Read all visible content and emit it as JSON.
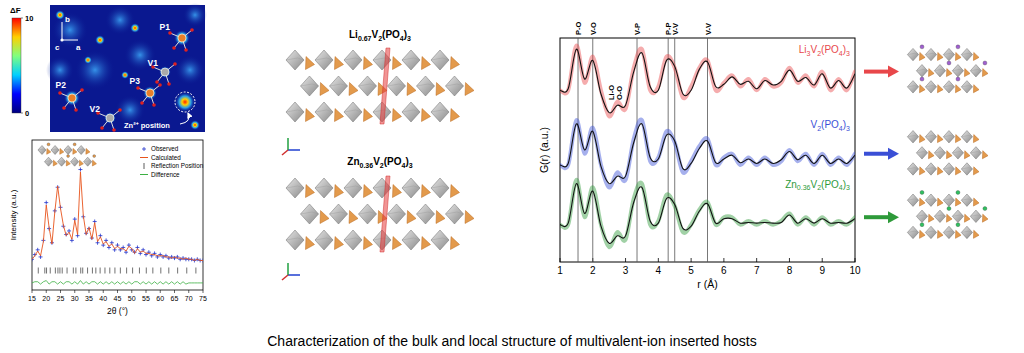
{
  "caption": "Characterization of the bulk and local structure of multivalent-ion inserted hosts",
  "density_map": {
    "colorbar": {
      "label": "ΔF",
      "range": [
        0,
        10
      ],
      "ticks": [
        0,
        10
      ]
    },
    "labels": [
      "P1",
      "P2",
      "P3",
      "V1",
      "V2"
    ],
    "annotation": "Zn²⁺ position",
    "axes": [
      "b",
      "c",
      "a"
    ]
  },
  "structures": {
    "titles": [
      "Li0.67V2(PO4)3",
      "Zn0.36V2(PO4)3"
    ]
  },
  "chart_data": [
    {
      "type": "line",
      "x_label": "2θ (°)",
      "y_label": "Intensity (a.u.)",
      "x": [
        15,
        16,
        17,
        18,
        19,
        20,
        21,
        22,
        23,
        24,
        25,
        26,
        27,
        28,
        29,
        30,
        31,
        32,
        33,
        34,
        35,
        36,
        37,
        38,
        39,
        40,
        41,
        42,
        43,
        44,
        45,
        46,
        47,
        48,
        49,
        50,
        51,
        52,
        53,
        54,
        55,
        56,
        57,
        58,
        59,
        60,
        61,
        62,
        63,
        64,
        65,
        66,
        67,
        68,
        69,
        70,
        71,
        72,
        73,
        74,
        75
      ],
      "series": [
        {
          "name": "Observed",
          "color": "#2233cc",
          "marker": "plus",
          "values": [
            14,
            18,
            22,
            16,
            30,
            62,
            40,
            28,
            55,
            75,
            58,
            42,
            35,
            38,
            30,
            48,
            34,
            90,
            50,
            36,
            40,
            32,
            46,
            28,
            34,
            26,
            30,
            24,
            28,
            22,
            26,
            22,
            24,
            20,
            26,
            22,
            20,
            24,
            19,
            22,
            18,
            20,
            17,
            19,
            16,
            18,
            16,
            17,
            15,
            16,
            15,
            16,
            14,
            15,
            14,
            14,
            14,
            13,
            14,
            13,
            13
          ]
        },
        {
          "name": "Calculated",
          "color": "#e8541c",
          "values": [
            14,
            17,
            21,
            17,
            29,
            60,
            41,
            27,
            54,
            76,
            57,
            43,
            34,
            37,
            31,
            47,
            35,
            88,
            51,
            35,
            41,
            31,
            45,
            29,
            33,
            27,
            29,
            25,
            27,
            23,
            25,
            23,
            23,
            21,
            25,
            23,
            19,
            23,
            20,
            21,
            19,
            19,
            18,
            18,
            17,
            17,
            17,
            16,
            16,
            15,
            16,
            15,
            15,
            14,
            15,
            14,
            14,
            13,
            14,
            13,
            13
          ]
        },
        {
          "name": "Reflection Position",
          "color": "#333333",
          "marker": "tick",
          "x": [
            17.2,
            19.5,
            20.1,
            21.4,
            23.2,
            24.1,
            24.8,
            25.6,
            27.3,
            29.5,
            30.4,
            32.1,
            32.8,
            34.5,
            36.2,
            37.4,
            38.9,
            40.6,
            42.3,
            44.1,
            46.0,
            48.2,
            50.3,
            52.7,
            55.1,
            57.4,
            60.2,
            63.0,
            66.1,
            69.3,
            72.5
          ]
        },
        {
          "name": "Difference",
          "color": "#3cb043",
          "values": [
            -6,
            -5,
            -5,
            -7,
            -5,
            -4,
            -7,
            -5,
            -5,
            -7,
            -5,
            -7,
            -5,
            -5,
            -7,
            -5,
            -7,
            -4,
            -7,
            -5,
            -7,
            -5,
            -5,
            -7,
            -5,
            -7,
            -5,
            -7,
            -5,
            -7,
            -5,
            -7,
            -5,
            -7,
            -5,
            -7,
            -5,
            -5,
            -7,
            -5,
            -7,
            -5,
            -7,
            -5,
            -7,
            -5,
            -7,
            -5,
            -7,
            -5,
            -7,
            -5,
            -7,
            -5,
            -7,
            -6,
            -6,
            -6,
            -6,
            -6,
            -6
          ]
        }
      ],
      "xlim": [
        15,
        75
      ],
      "xticks": [
        15,
        20,
        25,
        30,
        35,
        40,
        45,
        50,
        55,
        60,
        65,
        70,
        75
      ],
      "ylim": [
        -12,
        115
      ],
      "tick_labels": "x",
      "legend": "upper right"
    },
    {
      "type": "line",
      "x_label": "r (Å)",
      "y_label": "G(r) (a.u.)",
      "x": [
        1,
        1.25,
        1.5,
        1.75,
        2,
        2.25,
        2.5,
        2.75,
        3,
        3.25,
        3.5,
        3.75,
        4,
        4.25,
        4.5,
        4.75,
        5,
        5.25,
        5.5,
        5.75,
        6,
        6.25,
        6.5,
        6.75,
        7,
        7.25,
        7.5,
        7.75,
        8,
        8.25,
        8.5,
        8.75,
        9,
        9.25,
        9.5,
        9.75,
        10
      ],
      "series": [
        {
          "name": "Li3V2(PO4)3",
          "color": "#e8474a",
          "values": [
            2.3,
            2.3,
            2.9,
            2.4,
            2.75,
            2.3,
            1.95,
            2.15,
            2.05,
            2.6,
            2.85,
            2.3,
            2.35,
            2.75,
            2.6,
            2.2,
            2.35,
            2.6,
            2.7,
            2.3,
            2.4,
            2.5,
            2.35,
            2.45,
            2.3,
            2.45,
            2.35,
            2.4,
            2.6,
            2.4,
            2.5,
            2.35,
            2.55,
            2.3,
            2.45,
            2.3,
            2.55
          ],
          "fit": [
            2.3,
            2.32,
            2.85,
            2.45,
            2.7,
            2.25,
            2.0,
            2.1,
            2.1,
            2.55,
            2.8,
            2.35,
            2.3,
            2.7,
            2.62,
            2.25,
            2.3,
            2.58,
            2.68,
            2.35,
            2.38,
            2.48,
            2.38,
            2.42,
            2.32,
            2.43,
            2.37,
            2.42,
            2.57,
            2.42,
            2.47,
            2.37,
            2.52,
            2.33,
            2.43,
            2.33,
            2.52
          ]
        },
        {
          "name": "V2(PO4)3",
          "color": "#3a4fd6",
          "values": [
            1.3,
            1.3,
            1.9,
            1.45,
            1.8,
            1.3,
            1.0,
            1.2,
            1.1,
            1.65,
            1.9,
            1.35,
            1.4,
            1.75,
            1.6,
            1.2,
            1.35,
            1.55,
            1.65,
            1.3,
            1.4,
            1.45,
            1.3,
            1.4,
            1.3,
            1.4,
            1.3,
            1.35,
            1.5,
            1.35,
            1.45,
            1.3,
            1.45,
            1.3,
            1.4,
            1.3,
            1.45
          ],
          "fit": [
            1.3,
            1.32,
            1.85,
            1.5,
            1.75,
            1.28,
            1.05,
            1.15,
            1.15,
            1.6,
            1.85,
            1.4,
            1.38,
            1.7,
            1.62,
            1.25,
            1.32,
            1.52,
            1.62,
            1.33,
            1.38,
            1.43,
            1.33,
            1.38,
            1.32,
            1.38,
            1.32,
            1.37,
            1.48,
            1.37,
            1.43,
            1.32,
            1.43,
            1.32,
            1.38,
            1.32,
            1.43
          ]
        },
        {
          "name": "Zn0.36V2(PO4)3",
          "color": "#2e9a3a",
          "values": [
            0.5,
            0.5,
            1.1,
            0.6,
            1.0,
            0.5,
            0.2,
            0.4,
            0.3,
            0.85,
            1.05,
            0.5,
            0.55,
            0.9,
            0.75,
            0.4,
            0.5,
            0.7,
            0.8,
            0.5,
            0.6,
            0.6,
            0.5,
            0.55,
            0.5,
            0.55,
            0.5,
            0.55,
            0.65,
            0.5,
            0.6,
            0.5,
            0.6,
            0.5,
            0.55,
            0.5,
            0.6
          ],
          "fit": [
            0.5,
            0.52,
            1.05,
            0.65,
            0.95,
            0.48,
            0.25,
            0.35,
            0.35,
            0.8,
            1.0,
            0.55,
            0.52,
            0.85,
            0.77,
            0.45,
            0.48,
            0.68,
            0.78,
            0.52,
            0.58,
            0.58,
            0.52,
            0.53,
            0.52,
            0.53,
            0.52,
            0.53,
            0.63,
            0.52,
            0.58,
            0.52,
            0.58,
            0.52,
            0.53,
            0.52,
            0.58
          ]
        }
      ],
      "annotations": [
        {
          "label": "P-O",
          "x": 1.55,
          "line_style": "solid"
        },
        {
          "label": "V-O",
          "x": 2.0,
          "line_style": "solid"
        },
        {
          "label": "Li-O",
          "x": 2.55
        },
        {
          "label": "O-O",
          "x": 2.8
        },
        {
          "label": "V-P",
          "x": 3.35,
          "line_style": "solid"
        },
        {
          "label": "P-P",
          "x": 4.3,
          "line_style": "solid"
        },
        {
          "label": "V-V",
          "x": 4.5,
          "line_style": "solid"
        },
        {
          "label": "V-V",
          "x": 5.5,
          "line_style": "solid"
        }
      ],
      "xlim": [
        1,
        10
      ],
      "xticks": [
        1,
        2,
        3,
        4,
        5,
        6,
        7,
        8,
        9,
        10
      ],
      "ylim": [
        0,
        3
      ],
      "tick_labels": "x"
    }
  ]
}
